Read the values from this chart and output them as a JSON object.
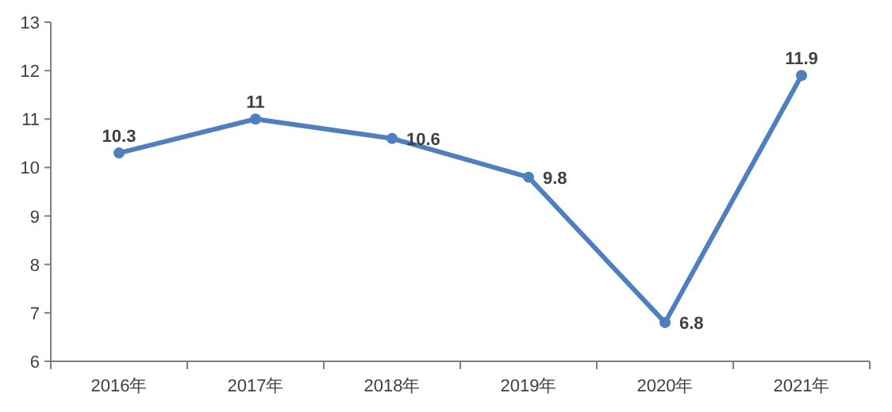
{
  "chart_data": {
    "type": "line",
    "categories": [
      "2016年",
      "2017年",
      "2018年",
      "2019年",
      "2020年",
      "2021年"
    ],
    "series": [
      {
        "color": "#4f7fbf",
        "values": [
          10.3,
          11,
          10.6,
          9.8,
          6.8,
          11.9
        ]
      }
    ],
    "ylim": [
      6,
      13
    ],
    "yticks": [
      6,
      7,
      8,
      9,
      10,
      11,
      12,
      13
    ],
    "marker": "circle",
    "line_style": "solid",
    "data_labels": true,
    "grid": false
  }
}
